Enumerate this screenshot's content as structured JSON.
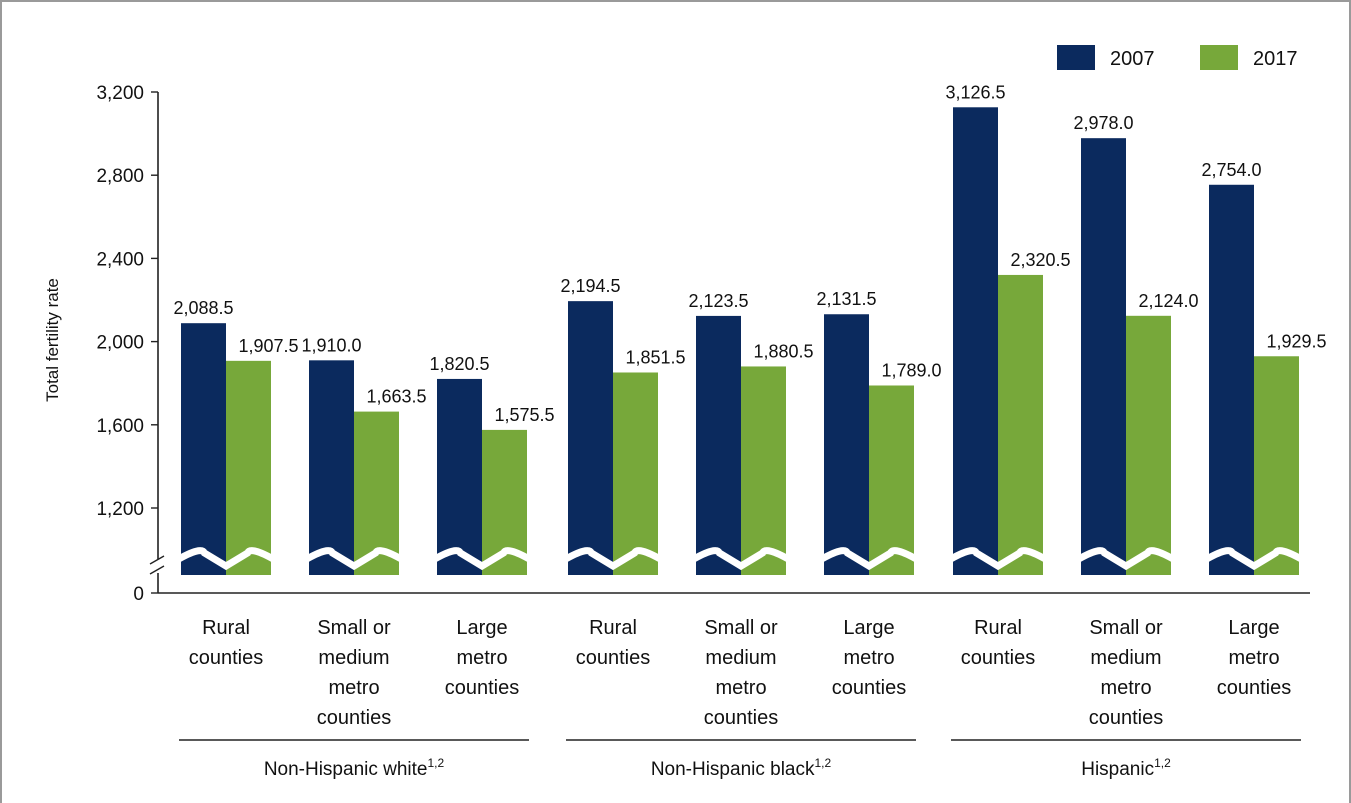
{
  "chart_data": {
    "type": "bar",
    "ylabel": "Total fertility rate",
    "y_ticks": [
      0,
      1200,
      1600,
      2000,
      2400,
      2800,
      3200
    ],
    "y_tick_labels": [
      "0",
      "1,200",
      "1,600",
      "2,000",
      "2,400",
      "2,800",
      "3,200"
    ],
    "ylim": [
      800,
      3200
    ],
    "axis_break": true,
    "legend_placement": "top-right",
    "colors": {
      "2007": "#0b2a5e",
      "2017": "#77a83a"
    },
    "groups": [
      {
        "label": "Non-Hispanic white",
        "superscript": "1,2"
      },
      {
        "label": "Non-Hispanic black",
        "superscript": "1,2"
      },
      {
        "label": "Hispanic",
        "superscript": "1,2"
      }
    ],
    "categories": [
      [
        "Rural",
        "counties"
      ],
      [
        "Small or",
        "medium",
        "metro",
        "counties"
      ],
      [
        "Large",
        "metro",
        "counties"
      ],
      [
        "Rural",
        "counties"
      ],
      [
        "Small or",
        "medium",
        "metro",
        "counties"
      ],
      [
        "Large",
        "metro",
        "counties"
      ],
      [
        "Rural",
        "counties"
      ],
      [
        "Small or",
        "medium",
        "metro",
        "counties"
      ],
      [
        "Large",
        "metro",
        "counties"
      ]
    ],
    "series": [
      {
        "name": "2007",
        "values": [
          2088.5,
          1910.0,
          1820.5,
          2194.5,
          2123.5,
          2131.5,
          3126.5,
          2978.0,
          2754.0
        ],
        "labels": [
          "2,088.5",
          "1,910.0",
          "1,820.5",
          "2,194.5",
          "2,123.5",
          "2,131.5",
          "3,126.5",
          "2,978.0",
          "2,754.0"
        ]
      },
      {
        "name": "2017",
        "values": [
          1907.5,
          1663.5,
          1575.5,
          1851.5,
          1880.5,
          1789.0,
          2320.5,
          2124.0,
          1929.5
        ],
        "labels": [
          "1,907.5",
          "1,663.5",
          "1,575.5",
          "1,851.5",
          "1,880.5",
          "1,789.0",
          "2,320.5",
          "2,124.0",
          "1,929.5"
        ]
      }
    ]
  }
}
